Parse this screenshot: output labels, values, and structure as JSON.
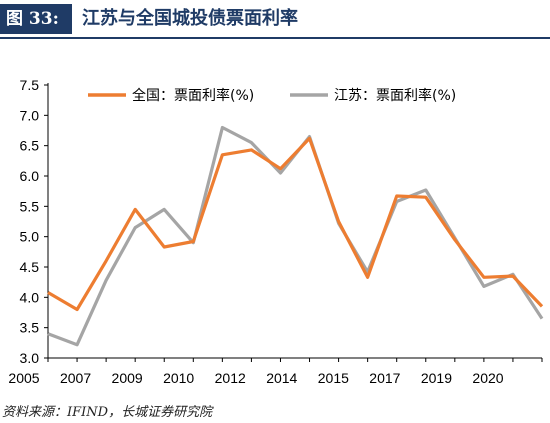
{
  "header": {
    "figure_label": "图 33:",
    "title": "江苏与全国城投债票面利率"
  },
  "source": "资料来源：IFIND，长城证券研究院",
  "chart_data": {
    "type": "line",
    "title": "江苏与全国城投债票面利率",
    "xlabel": "",
    "ylabel": "",
    "x": [
      2005,
      2006,
      2007,
      2008,
      2009,
      2010,
      2011,
      2012,
      2013,
      2014,
      2015,
      2016,
      2017,
      2018,
      2019,
      2020,
      2021,
      2022
    ],
    "xticks": [
      "2005",
      "2007",
      "2009",
      "2010",
      "2012",
      "2014",
      "2015",
      "2017",
      "2019",
      "2020"
    ],
    "ylim": [
      3.0,
      7.5
    ],
    "yticks": [
      "3.0",
      "3.5",
      "4.0",
      "4.5",
      "5.0",
      "5.5",
      "6.0",
      "6.5",
      "7.0",
      "7.5"
    ],
    "grid": false,
    "legend_position": "top",
    "series": [
      {
        "name": "全国：票面利率(%)",
        "color": "#ed7d31",
        "values": [
          4.08,
          3.8,
          4.6,
          5.45,
          4.83,
          4.92,
          6.35,
          6.43,
          6.12,
          6.62,
          5.25,
          4.33,
          5.67,
          5.65,
          4.95,
          4.33,
          4.35,
          3.85
        ]
      },
      {
        "name": "江苏：票面利率(%)",
        "color": "#a5a5a5",
        "values": [
          3.4,
          3.22,
          4.28,
          5.15,
          5.45,
          4.9,
          6.8,
          6.55,
          6.05,
          6.65,
          5.22,
          4.42,
          5.58,
          5.77,
          4.98,
          4.18,
          4.38,
          3.65
        ]
      }
    ]
  }
}
